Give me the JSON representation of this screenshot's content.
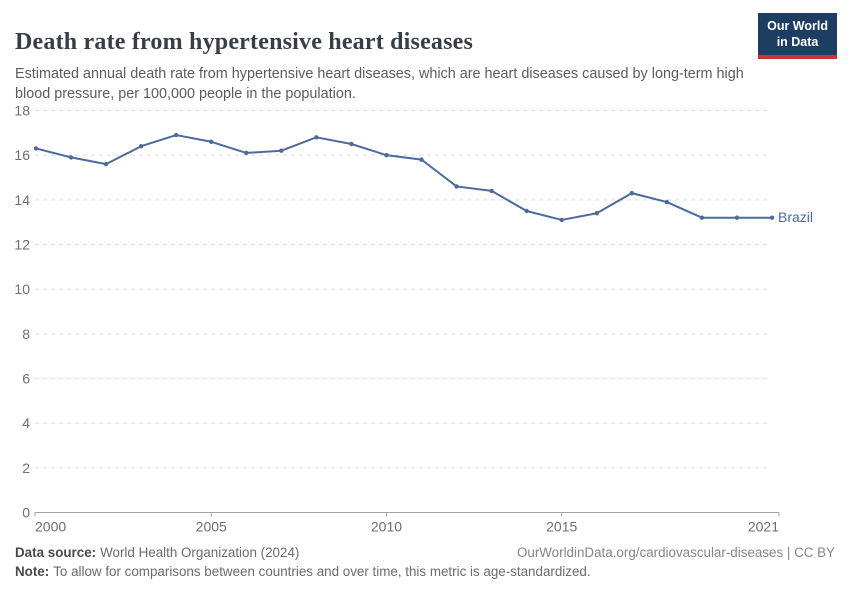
{
  "logo": {
    "line1": "Our World",
    "line2": "in Data"
  },
  "chart_data": {
    "type": "line",
    "title": "Death rate from hypertensive heart diseases",
    "subtitle": "Estimated annual death rate from hypertensive heart diseases, which are heart diseases caused by long-term high blood pressure, per 100,000 people in the population.",
    "x": [
      2000,
      2001,
      2002,
      2003,
      2004,
      2005,
      2006,
      2007,
      2008,
      2009,
      2010,
      2011,
      2012,
      2013,
      2014,
      2015,
      2016,
      2017,
      2018,
      2019,
      2020,
      2021
    ],
    "series": [
      {
        "name": "Brazil",
        "color": "#4c6a9c",
        "values": [
          16.3,
          15.9,
          15.6,
          16.4,
          16.9,
          16.6,
          16.1,
          16.2,
          16.8,
          16.5,
          16.0,
          15.8,
          14.6,
          14.4,
          13.5,
          13.1,
          13.4,
          14.3,
          13.9,
          13.2,
          13.2,
          13.2
        ]
      }
    ],
    "ylim": [
      0,
      18
    ],
    "ytick_step": 2,
    "xticks": [
      2000,
      2005,
      2010,
      2015,
      2021
    ],
    "grid": "horizontal-dashed",
    "legend_position": "line-end-label",
    "colors": {
      "grid": "#dcdcdc",
      "axis": "#a3a3a3",
      "tick_label": "#6e6e6e"
    }
  },
  "footer": {
    "datasource_label": "Data source:",
    "datasource_value": "World Health Organization (2024)",
    "link": "OurWorldinData.org/cardiovascular-diseases | CC BY",
    "note_label": "Note:",
    "note_value": "To allow for comparisons between countries and over time, this metric is age-standardized."
  }
}
